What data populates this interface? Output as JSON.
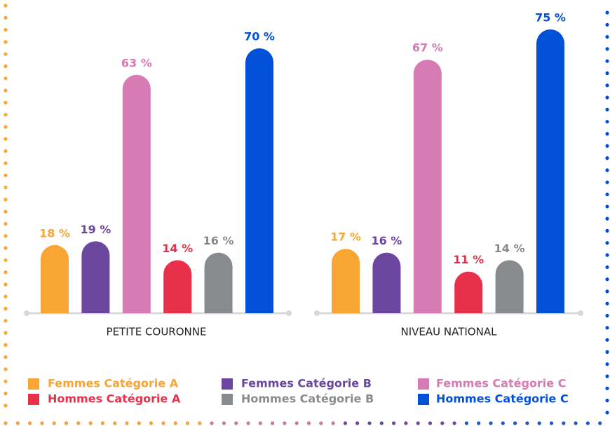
{
  "chart_data": {
    "type": "bar",
    "categories": [
      "PETITE COURONNE",
      "NIVEAU NATIONAL"
    ],
    "series": [
      {
        "name": "Femmes Catégorie A",
        "color": "#f9a533",
        "values": [
          18,
          17
        ],
        "value_labels": [
          "18 %",
          "17 %"
        ]
      },
      {
        "name": "Femmes Catégorie B",
        "color": "#6b479f",
        "values": [
          19,
          16
        ],
        "value_labels": [
          "19 %",
          "16 %"
        ]
      },
      {
        "name": "Femmes Catégorie C",
        "color": "#d67bb3",
        "values": [
          63,
          67
        ],
        "value_labels": [
          "63 %",
          "67 %"
        ]
      },
      {
        "name": "Hommes Catégorie A",
        "color": "#e8304a",
        "values": [
          14,
          11
        ],
        "value_labels": [
          "14 %",
          "11 %"
        ]
      },
      {
        "name": "Hommes Catégorie B",
        "color": "#878b8e",
        "values": [
          16,
          14
        ],
        "value_labels": [
          "16 %",
          "14 %"
        ]
      },
      {
        "name": "Hommes Catégorie C",
        "color": "#0050d8",
        "values": [
          70,
          75
        ],
        "value_labels": [
          "70 %",
          "75 %"
        ]
      }
    ]
  }
}
